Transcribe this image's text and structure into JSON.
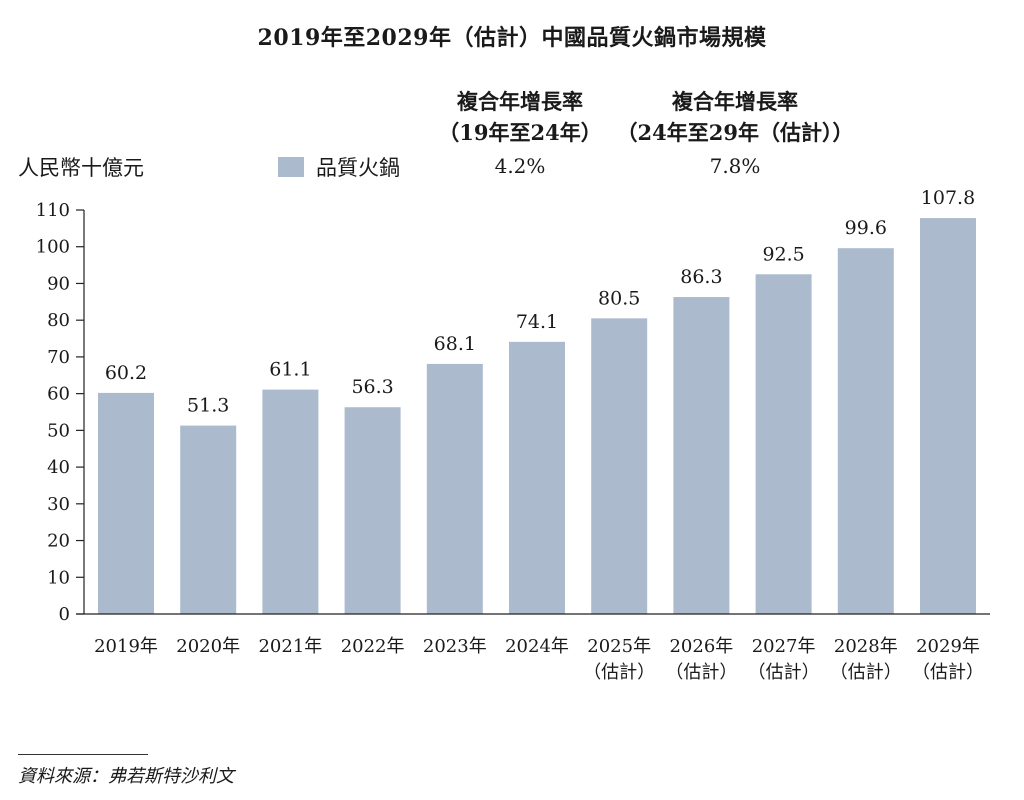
{
  "title": "2019年至2029年（估計）中國品質火鍋市場規模",
  "unit_label": "人民幣十億元",
  "legend": [
    {
      "label": "品質火鍋",
      "color": "#abbbcd"
    }
  ],
  "cagr": [
    {
      "heading_line1": "複合年增長率",
      "heading_line2": "（19年至24年）",
      "value": "4.2%"
    },
    {
      "heading_line1": "複合年增長率",
      "heading_line2": "（24年至29年（估計））",
      "value": "7.8%"
    }
  ],
  "source": "資料來源：弗若斯特沙利文",
  "chart_data": {
    "type": "bar",
    "title": "2019年至2029年（估計）中國品質火鍋市場規模",
    "ylabel": "人民幣十億元",
    "xlabel": "",
    "ylim": [
      0,
      110
    ],
    "y_ticks": [
      0,
      10,
      20,
      30,
      40,
      50,
      60,
      70,
      80,
      90,
      100,
      110
    ],
    "grid": false,
    "legend_position": "top",
    "categories": [
      [
        "2019年"
      ],
      [
        "2020年"
      ],
      [
        "2021年"
      ],
      [
        "2022年"
      ],
      [
        "2023年"
      ],
      [
        "2024年"
      ],
      [
        "2025年",
        "（估計）"
      ],
      [
        "2026年",
        "（估計）"
      ],
      [
        "2027年",
        "（估計）"
      ],
      [
        "2028年",
        "（估計）"
      ],
      [
        "2029年",
        "（估計）"
      ]
    ],
    "series": [
      {
        "name": "品質火鍋",
        "color": "#abbbcd",
        "values": [
          60.2,
          51.3,
          61.1,
          56.3,
          68.1,
          74.1,
          80.5,
          86.3,
          92.5,
          99.6,
          107.8
        ],
        "labels": [
          "60.2",
          "51.3",
          "61.1",
          "56.3",
          "68.1",
          "74.1",
          "80.5",
          "86.3",
          "92.5",
          "99.6",
          "107.8"
        ]
      }
    ]
  }
}
